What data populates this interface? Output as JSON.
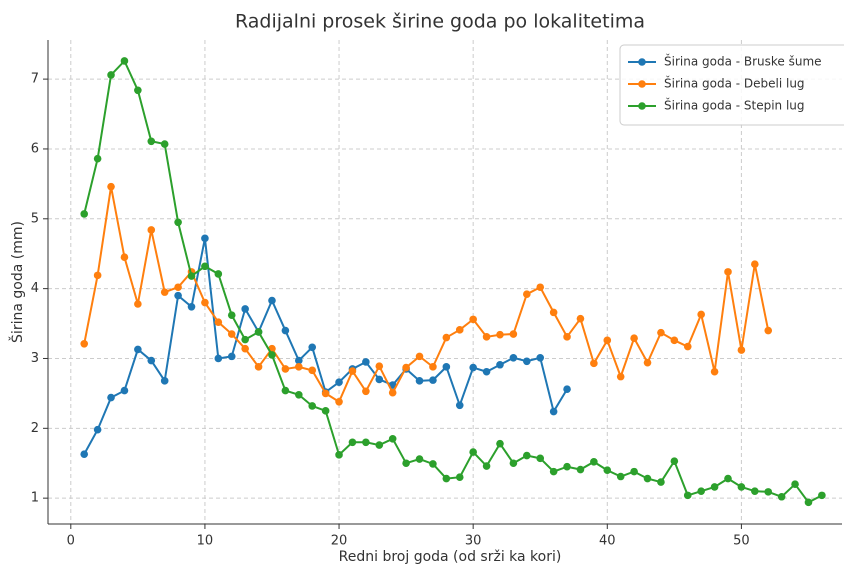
{
  "chart_data": {
    "type": "line",
    "title": "Radijalni prosek širine goda po lokalitetima",
    "xlabel": "Redni broj goda (od srži ka kori)",
    "ylabel": "Širina goda (mm)",
    "xlim": [
      -1.7,
      57.5
    ],
    "ylim": [
      0.63,
      7.56
    ],
    "xticks": [
      0,
      10,
      20,
      30,
      40,
      50
    ],
    "yticks": [
      1,
      2,
      3,
      4,
      5,
      6,
      7
    ],
    "grid": true,
    "legend": "upper right",
    "series": [
      {
        "name": "Širina goda - Bruske šume",
        "color": "#1f77b4",
        "x": [
          1,
          2,
          3,
          4,
          5,
          6,
          7,
          8,
          9,
          10,
          11,
          12,
          13,
          14,
          15,
          16,
          17,
          18,
          19,
          20,
          21,
          22,
          23,
          24,
          25,
          26,
          27,
          28,
          29,
          30,
          31,
          32,
          33,
          34,
          35,
          36,
          37
        ],
        "values": [
          1.63,
          1.98,
          2.44,
          2.54,
          3.13,
          2.97,
          2.68,
          3.9,
          3.74,
          4.72,
          3.0,
          3.03,
          3.71,
          3.38,
          3.83,
          3.4,
          2.97,
          3.16,
          2.52,
          2.66,
          2.85,
          2.95,
          2.7,
          2.62,
          2.85,
          2.68,
          2.69,
          2.88,
          2.33,
          2.87,
          2.81,
          2.91,
          3.01,
          2.96,
          3.01,
          2.24,
          2.56
        ]
      },
      {
        "name": "Širina goda - Debeli lug",
        "color": "#ff7f0e",
        "x": [
          1,
          2,
          3,
          4,
          5,
          6,
          7,
          8,
          9,
          10,
          11,
          12,
          13,
          14,
          15,
          16,
          17,
          18,
          19,
          20,
          21,
          22,
          23,
          24,
          25,
          26,
          27,
          28,
          29,
          30,
          31,
          32,
          33,
          34,
          35,
          36,
          37,
          38,
          39,
          40,
          41,
          42,
          43,
          44,
          45,
          46,
          47,
          48,
          49,
          50,
          51,
          52
        ],
        "values": [
          3.21,
          4.19,
          5.46,
          4.45,
          3.78,
          4.84,
          3.95,
          4.02,
          4.24,
          3.8,
          3.52,
          3.35,
          3.14,
          2.88,
          3.14,
          2.85,
          2.88,
          2.83,
          2.5,
          2.38,
          2.82,
          2.53,
          2.89,
          2.51,
          2.87,
          3.03,
          2.88,
          3.3,
          3.41,
          3.56,
          3.31,
          3.34,
          3.35,
          3.92,
          4.02,
          3.66,
          3.31,
          3.57,
          2.93,
          3.26,
          2.74,
          3.29,
          2.94,
          3.37,
          3.26,
          3.17,
          3.63,
          2.81,
          4.24,
          3.12,
          4.35,
          3.4
        ]
      },
      {
        "name": "Širina goda - Stepin lug",
        "color": "#2ca02c",
        "x": [
          1,
          2,
          3,
          4,
          5,
          6,
          7,
          8,
          9,
          10,
          11,
          12,
          13,
          14,
          15,
          16,
          17,
          18,
          19,
          20,
          21,
          22,
          23,
          24,
          25,
          26,
          27,
          28,
          29,
          30,
          31,
          32,
          33,
          34,
          35,
          36,
          37,
          38,
          39,
          40,
          41,
          42,
          43,
          44,
          45,
          46,
          47,
          48,
          49,
          50,
          51,
          52,
          53,
          54,
          55,
          56
        ],
        "values": [
          5.07,
          5.86,
          7.06,
          7.26,
          6.84,
          6.11,
          6.07,
          4.95,
          4.18,
          4.32,
          4.21,
          3.62,
          3.27,
          3.38,
          3.05,
          2.54,
          2.48,
          2.32,
          2.25,
          1.62,
          1.8,
          1.8,
          1.76,
          1.85,
          1.5,
          1.56,
          1.49,
          1.28,
          1.3,
          1.66,
          1.46,
          1.78,
          1.5,
          1.61,
          1.57,
          1.38,
          1.45,
          1.41,
          1.52,
          1.4,
          1.31,
          1.38,
          1.28,
          1.23,
          1.53,
          1.04,
          1.1,
          1.16,
          1.28,
          1.16,
          1.1,
          1.09,
          1.02,
          1.2,
          0.94,
          1.04
        ]
      }
    ]
  }
}
